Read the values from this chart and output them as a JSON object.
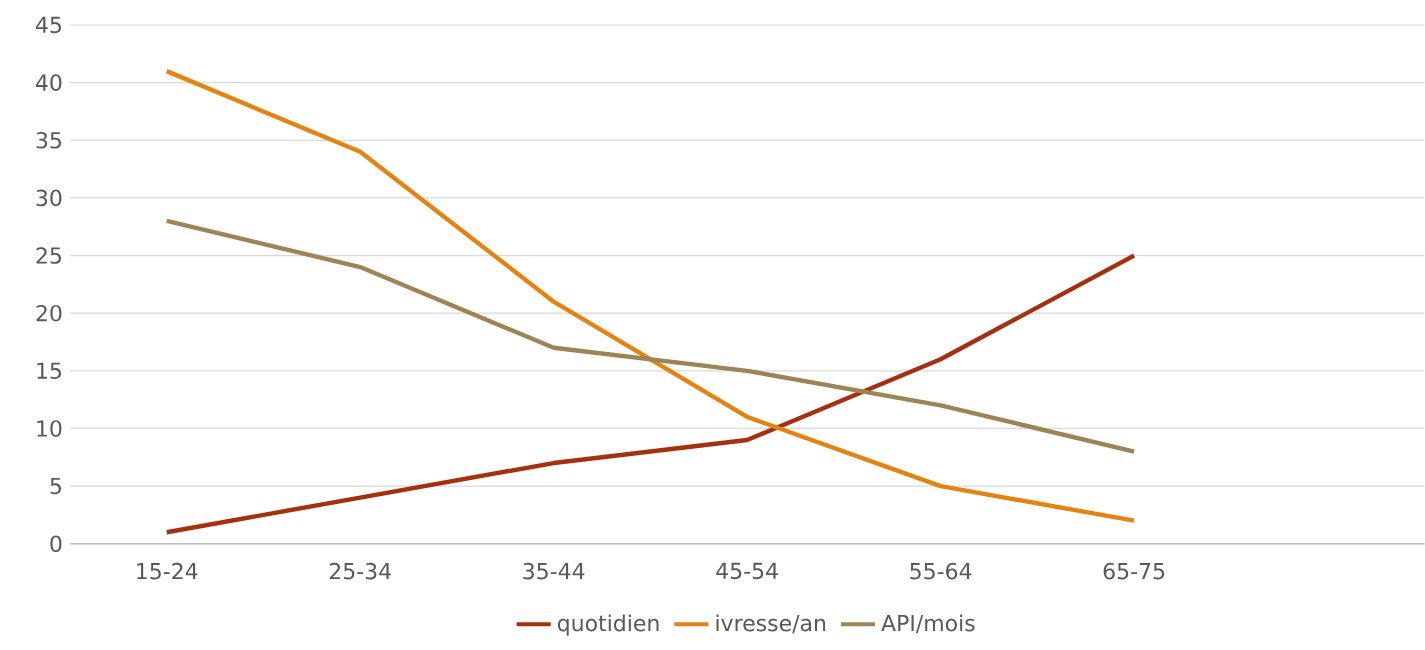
{
  "chart_data": {
    "type": "line",
    "categories": [
      "15-24",
      "25-34",
      "35-44",
      "45-54",
      "55-64",
      "65-75",
      null
    ],
    "series": [
      {
        "name": "quotidien",
        "color": "#a5300f",
        "values": [
          1,
          4,
          7,
          9,
          16,
          25,
          null
        ]
      },
      {
        "name": "ivresse/an",
        "color": "#e48312",
        "values": [
          41,
          34,
          21,
          11,
          5,
          2,
          null
        ]
      },
      {
        "name": "API/mois",
        "color": "#9c8455",
        "values": [
          28,
          24,
          17,
          15,
          12,
          8,
          null
        ]
      }
    ],
    "ylim": [
      0,
      45
    ],
    "yticks": [
      0,
      5,
      10,
      15,
      20,
      25,
      30,
      35,
      40,
      45
    ],
    "grid": "y",
    "legend": "bottom",
    "marker": "none",
    "line_style": "solid"
  }
}
